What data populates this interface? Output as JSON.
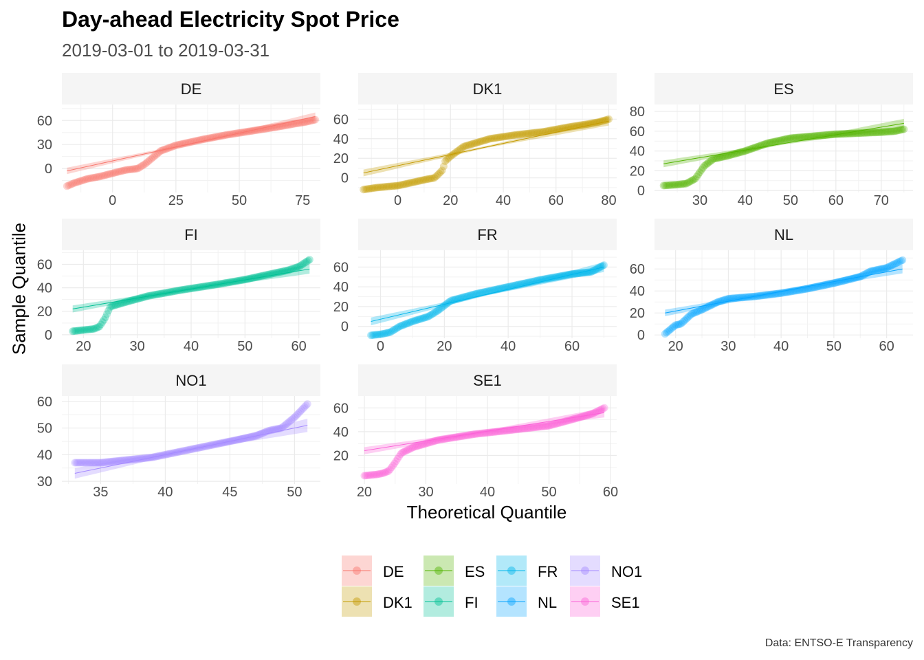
{
  "title": "Day-ahead Electricity Spot Price",
  "subtitle": "2019-03-01 to 2019-03-31",
  "caption": "Data: ENTSO-E Transparency",
  "chart_data": {
    "type": "scatter",
    "subtype": "qq-plot faceted by market area, with fitted reference line and confidence band",
    "xlabel": "Theoretical Quantile",
    "ylabel": "Sample Quantile",
    "grid": true,
    "legend_position": "bottom",
    "facets": [
      {
        "name": "DE",
        "color": "#F8766D",
        "xlim": [
          -20,
          82
        ],
        "ylim": [
          -30,
          80
        ],
        "xticks": [
          0,
          25,
          50,
          75
        ],
        "yticks": [
          0,
          30,
          60
        ],
        "curve": [
          [
            -18,
            -22
          ],
          [
            -15,
            -18
          ],
          [
            -10,
            -13
          ],
          [
            -5,
            -10
          ],
          [
            0,
            -6
          ],
          [
            5,
            -2
          ],
          [
            10,
            0
          ],
          [
            13,
            6
          ],
          [
            16,
            14
          ],
          [
            19,
            22
          ],
          [
            25,
            29
          ],
          [
            35,
            36
          ],
          [
            45,
            42
          ],
          [
            55,
            47
          ],
          [
            65,
            52
          ],
          [
            72,
            56
          ],
          [
            76,
            58
          ],
          [
            80,
            61
          ]
        ],
        "fit": [
          [
            -18,
            -3
          ],
          [
            80,
            65
          ]
        ],
        "band_width": [
          8,
          2,
          10
        ]
      },
      {
        "name": "DK1",
        "color": "#C49A00",
        "xlim": [
          -15,
          83
        ],
        "ylim": [
          -15,
          75
        ],
        "xticks": [
          0,
          20,
          40,
          60,
          80
        ],
        "yticks": [
          0,
          20,
          40,
          60
        ],
        "curve": [
          [
            -13,
            -12
          ],
          [
            -8,
            -10
          ],
          [
            0,
            -8
          ],
          [
            5,
            -5
          ],
          [
            10,
            -2
          ],
          [
            14,
            0
          ],
          [
            17,
            8
          ],
          [
            18,
            17
          ],
          [
            20,
            22
          ],
          [
            25,
            32
          ],
          [
            35,
            40
          ],
          [
            45,
            44
          ],
          [
            55,
            47
          ],
          [
            65,
            52
          ],
          [
            72,
            55
          ],
          [
            76,
            57
          ],
          [
            80,
            60
          ]
        ],
        "fit": [
          [
            -13,
            5
          ],
          [
            80,
            58
          ]
        ],
        "band_width": [
          7,
          2,
          9
        ]
      },
      {
        "name": "ES",
        "color": "#53B400",
        "xlim": [
          20,
          77
        ],
        "ylim": [
          -2,
          87
        ],
        "xticks": [
          30,
          40,
          50,
          60,
          70
        ],
        "yticks": [
          0,
          20,
          40,
          60,
          80
        ],
        "curve": [
          [
            22,
            5
          ],
          [
            25,
            6
          ],
          [
            27,
            7
          ],
          [
            29,
            12
          ],
          [
            31,
            25
          ],
          [
            33,
            32
          ],
          [
            36,
            35
          ],
          [
            40,
            40
          ],
          [
            45,
            48
          ],
          [
            50,
            53
          ],
          [
            55,
            55
          ],
          [
            60,
            57
          ],
          [
            65,
            58
          ],
          [
            70,
            59
          ],
          [
            73,
            60
          ],
          [
            75,
            62
          ]
        ],
        "fit": [
          [
            22,
            27
          ],
          [
            75,
            68
          ]
        ],
        "band_width": [
          7,
          2,
          9
        ]
      },
      {
        "name": "FI",
        "color": "#00C094",
        "xlim": [
          16,
          64
        ],
        "ylim": [
          -3,
          72
        ],
        "xticks": [
          20,
          30,
          40,
          50,
          60
        ],
        "yticks": [
          0,
          20,
          40,
          60
        ],
        "curve": [
          [
            18,
            3
          ],
          [
            20,
            4
          ],
          [
            22,
            5
          ],
          [
            23,
            7
          ],
          [
            24,
            14
          ],
          [
            25,
            24
          ],
          [
            28,
            28
          ],
          [
            32,
            33
          ],
          [
            38,
            38
          ],
          [
            45,
            43
          ],
          [
            50,
            47
          ],
          [
            55,
            52
          ],
          [
            58,
            55
          ],
          [
            60,
            58
          ],
          [
            62,
            64
          ]
        ],
        "fit": [
          [
            18,
            22
          ],
          [
            62,
            56
          ]
        ],
        "band_width": [
          6,
          2,
          8
        ]
      },
      {
        "name": "FR",
        "color": "#00B6EB",
        "xlim": [
          -7,
          74
        ],
        "ylim": [
          -12,
          77
        ],
        "xticks": [
          0,
          20,
          40,
          60
        ],
        "yticks": [
          0,
          20,
          40,
          60
        ],
        "curve": [
          [
            -3,
            -9
          ],
          [
            0,
            -8
          ],
          [
            3,
            -6
          ],
          [
            6,
            0
          ],
          [
            10,
            5
          ],
          [
            15,
            10
          ],
          [
            18,
            16
          ],
          [
            22,
            26
          ],
          [
            30,
            33
          ],
          [
            40,
            40
          ],
          [
            50,
            47
          ],
          [
            60,
            53
          ],
          [
            66,
            55
          ],
          [
            70,
            62
          ]
        ],
        "fit": [
          [
            -3,
            5
          ],
          [
            70,
            60
          ]
        ],
        "band_width": [
          8,
          2,
          10
        ]
      },
      {
        "name": "NL",
        "color": "#06A4FF",
        "xlim": [
          16,
          65
        ],
        "ylim": [
          -3,
          77
        ],
        "xticks": [
          20,
          30,
          40,
          50,
          60
        ],
        "yticks": [
          0,
          20,
          40,
          60
        ],
        "curve": [
          [
            18,
            1
          ],
          [
            20,
            9
          ],
          [
            21,
            10
          ],
          [
            23,
            19
          ],
          [
            25,
            23
          ],
          [
            28,
            30
          ],
          [
            30,
            33
          ],
          [
            35,
            35
          ],
          [
            40,
            38
          ],
          [
            45,
            42
          ],
          [
            50,
            47
          ],
          [
            55,
            53
          ],
          [
            57,
            58
          ],
          [
            60,
            61
          ],
          [
            63,
            68
          ]
        ],
        "fit": [
          [
            18,
            20
          ],
          [
            63,
            60
          ]
        ],
        "band_width": [
          6,
          2,
          8
        ]
      },
      {
        "name": "NO1",
        "color": "#A58AFF",
        "xlim": [
          32,
          52
        ],
        "ylim": [
          29,
          62
        ],
        "xticks": [
          35,
          40,
          45,
          50
        ],
        "yticks": [
          30,
          40,
          50,
          60
        ],
        "curve": [
          [
            33,
            37
          ],
          [
            35,
            37
          ],
          [
            37,
            38
          ],
          [
            39,
            39
          ],
          [
            41,
            41
          ],
          [
            43,
            43
          ],
          [
            45,
            45
          ],
          [
            47,
            47
          ],
          [
            48,
            49
          ],
          [
            49,
            50
          ],
          [
            50,
            54
          ],
          [
            51,
            59
          ]
        ],
        "fit": [
          [
            33,
            33
          ],
          [
            51,
            51
          ]
        ],
        "band_width": [
          4,
          1,
          5
        ]
      },
      {
        "name": "SE1",
        "color": "#FB61D7",
        "xlim": [
          19,
          61
        ],
        "ylim": [
          -4,
          70
        ],
        "xticks": [
          20,
          30,
          40,
          50,
          60
        ],
        "yticks": [
          20,
          40,
          60
        ],
        "curve": [
          [
            20,
            3
          ],
          [
            22,
            4
          ],
          [
            23,
            5
          ],
          [
            24,
            7
          ],
          [
            25,
            14
          ],
          [
            26,
            22
          ],
          [
            28,
            27
          ],
          [
            32,
            33
          ],
          [
            38,
            38
          ],
          [
            45,
            42
          ],
          [
            50,
            45
          ],
          [
            55,
            52
          ],
          [
            57,
            55
          ],
          [
            59,
            60
          ]
        ],
        "fit": [
          [
            20,
            24
          ],
          [
            59,
            56
          ]
        ],
        "band_width": [
          6,
          2,
          8
        ]
      }
    ],
    "legend": [
      {
        "label": "DE",
        "color": "#F8766D"
      },
      {
        "label": "DK1",
        "color": "#C49A00"
      },
      {
        "label": "ES",
        "color": "#53B400"
      },
      {
        "label": "FI",
        "color": "#00C094"
      },
      {
        "label": "FR",
        "color": "#00B6EB"
      },
      {
        "label": "NL",
        "color": "#06A4FF"
      },
      {
        "label": "NO1",
        "color": "#A58AFF"
      },
      {
        "label": "SE1",
        "color": "#FB61D7"
      }
    ]
  }
}
